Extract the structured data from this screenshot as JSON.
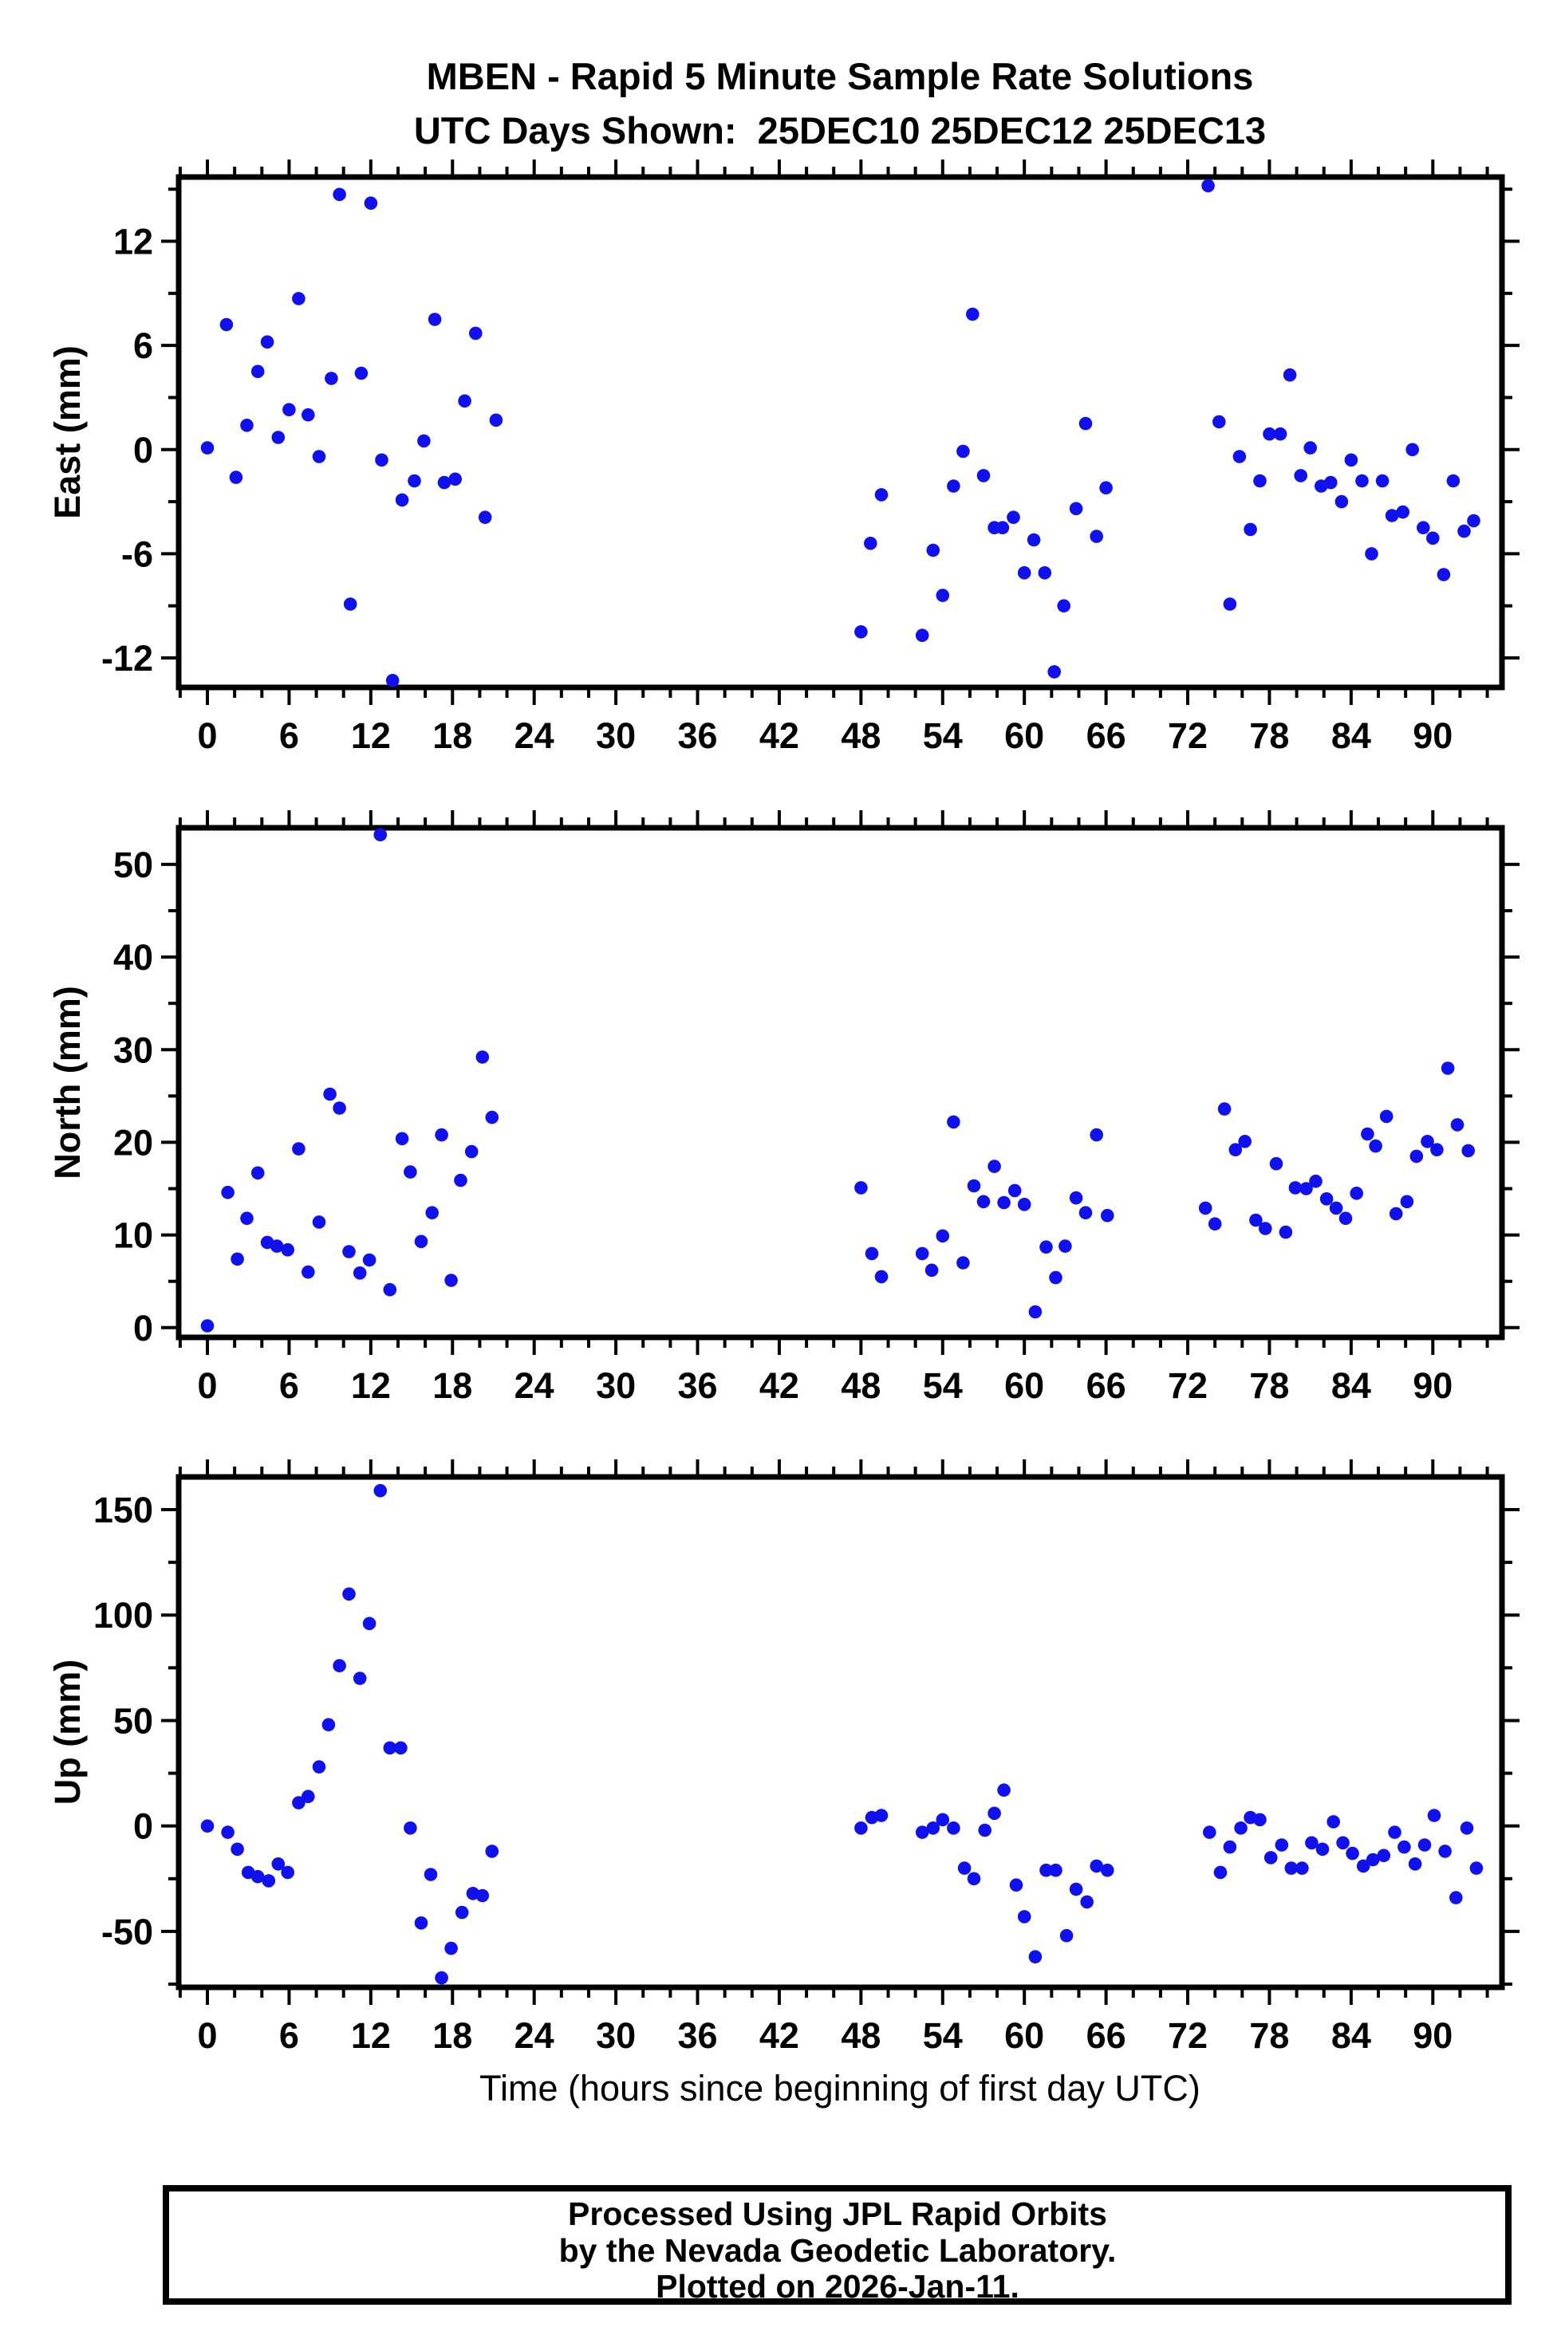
{
  "title": {
    "line1": "MBEN - Rapid 5 Minute Sample Rate Solutions",
    "line2": "UTC Days Shown:  25DEC10 25DEC12 25DEC13"
  },
  "footer": {
    "line1": "Processed Using JPL Rapid Orbits",
    "line2": "by the Nevada Geodetic Laboratory.",
    "line3": "Plotted on 2026-Jan-11."
  },
  "colors": {
    "marker": "#1111ee",
    "axis": "#000000",
    "background": "#ffffff"
  },
  "chart_data": {
    "type": "scatter",
    "title": "MBEN - Rapid 5 Minute Sample Rate Solutions",
    "subtitle": "UTC Days Shown:  25DEC10 25DEC12 25DEC13",
    "xlabel": "Time (hours since beginning of first day UTC)",
    "x_axis": {
      "range": [
        -2.11,
        95.08
      ],
      "major_ticks": [
        0,
        6,
        12,
        18,
        24,
        30,
        36,
        42,
        48,
        54,
        60,
        66,
        72,
        78,
        84,
        90
      ],
      "minor_step": 2,
      "grid": false
    },
    "legend": null,
    "panels": [
      {
        "name": "east",
        "ylabel": "East (mm)",
        "ylim": [
          -13.7,
          15.7
        ],
        "yticks": [
          12,
          6,
          0,
          -6,
          -12
        ],
        "yminors": [
          15,
          9,
          3,
          -3,
          -9
        ],
        "points": [
          [
            0.0,
            0.1
          ],
          [
            1.4,
            7.2
          ],
          [
            2.1,
            -1.6
          ],
          [
            2.9,
            1.4
          ],
          [
            3.7,
            4.5
          ],
          [
            4.4,
            6.2
          ],
          [
            5.2,
            0.7
          ],
          [
            6.0,
            2.3
          ],
          [
            6.7,
            8.7
          ],
          [
            7.4,
            2.0
          ],
          [
            8.2,
            -0.4
          ],
          [
            9.1,
            4.1
          ],
          [
            9.7,
            14.7
          ],
          [
            10.5,
            -8.9
          ],
          [
            11.3,
            4.4
          ],
          [
            12.0,
            14.2
          ],
          [
            12.8,
            -0.6
          ],
          [
            13.6,
            -13.3
          ],
          [
            14.3,
            -2.9
          ],
          [
            15.2,
            -1.8
          ],
          [
            15.9,
            0.5
          ],
          [
            16.7,
            7.5
          ],
          [
            17.4,
            -1.9
          ],
          [
            18.2,
            -1.7
          ],
          [
            18.9,
            2.8
          ],
          [
            19.7,
            6.7
          ],
          [
            20.4,
            -3.9
          ],
          [
            21.2,
            1.7
          ],
          [
            48.0,
            -10.5
          ],
          [
            48.7,
            -5.4
          ],
          [
            49.5,
            -2.6
          ],
          [
            52.5,
            -10.7
          ],
          [
            53.3,
            -5.8
          ],
          [
            54.0,
            -8.4
          ],
          [
            54.8,
            -2.1
          ],
          [
            55.5,
            -0.1
          ],
          [
            56.2,
            7.8
          ],
          [
            57.0,
            -1.5
          ],
          [
            57.8,
            -4.5
          ],
          [
            58.4,
            -4.5
          ],
          [
            59.2,
            -3.9
          ],
          [
            60.0,
            -7.1
          ],
          [
            60.7,
            -5.2
          ],
          [
            61.5,
            -7.1
          ],
          [
            62.2,
            -12.8
          ],
          [
            62.9,
            -9.0
          ],
          [
            63.8,
            -3.4
          ],
          [
            64.5,
            1.5
          ],
          [
            65.3,
            -5.0
          ],
          [
            66.0,
            -2.2
          ],
          [
            73.5,
            15.2
          ],
          [
            74.3,
            1.6
          ],
          [
            75.1,
            -8.9
          ],
          [
            75.8,
            -0.4
          ],
          [
            76.6,
            -4.6
          ],
          [
            77.3,
            -1.8
          ],
          [
            78.0,
            0.9
          ],
          [
            78.8,
            0.9
          ],
          [
            79.5,
            4.3
          ],
          [
            80.3,
            -1.5
          ],
          [
            81.0,
            0.1
          ],
          [
            81.8,
            -2.1
          ],
          [
            82.5,
            -1.9
          ],
          [
            83.3,
            -3.0
          ],
          [
            84.0,
            -0.6
          ],
          [
            84.8,
            -1.8
          ],
          [
            85.5,
            -6.0
          ],
          [
            86.3,
            -1.8
          ],
          [
            87.0,
            -3.8
          ],
          [
            87.8,
            -3.6
          ],
          [
            88.5,
            0.0
          ],
          [
            89.3,
            -4.5
          ],
          [
            90.0,
            -5.1
          ],
          [
            90.8,
            -7.2
          ],
          [
            91.5,
            -1.8
          ],
          [
            92.3,
            -4.7
          ],
          [
            93.0,
            -4.1
          ]
        ]
      },
      {
        "name": "north",
        "ylabel": "North (mm)",
        "ylim": [
          -1.05,
          53.95
        ],
        "yticks": [
          50,
          40,
          30,
          20,
          10,
          0
        ],
        "yminors": [
          45,
          35,
          25,
          15,
          5
        ],
        "points": [
          [
            0.0,
            0.2
          ],
          [
            1.5,
            14.6
          ],
          [
            2.2,
            7.4
          ],
          [
            2.9,
            11.8
          ],
          [
            3.7,
            16.7
          ],
          [
            4.4,
            9.2
          ],
          [
            5.1,
            8.8
          ],
          [
            5.9,
            8.4
          ],
          [
            6.7,
            19.3
          ],
          [
            7.4,
            6.0
          ],
          [
            8.2,
            11.4
          ],
          [
            9.0,
            25.2
          ],
          [
            9.7,
            23.7
          ],
          [
            10.4,
            8.2
          ],
          [
            11.2,
            5.9
          ],
          [
            11.9,
            7.3
          ],
          [
            12.7,
            53.2
          ],
          [
            13.4,
            4.1
          ],
          [
            14.3,
            20.4
          ],
          [
            14.9,
            16.8
          ],
          [
            15.7,
            9.3
          ],
          [
            16.5,
            12.4
          ],
          [
            17.2,
            20.8
          ],
          [
            17.9,
            5.1
          ],
          [
            18.6,
            15.9
          ],
          [
            19.4,
            19.0
          ],
          [
            20.2,
            29.2
          ],
          [
            20.9,
            22.7
          ],
          [
            48.0,
            15.1
          ],
          [
            48.8,
            8.0
          ],
          [
            49.5,
            5.5
          ],
          [
            52.5,
            8.0
          ],
          [
            53.2,
            6.2
          ],
          [
            54.0,
            9.9
          ],
          [
            54.8,
            22.2
          ],
          [
            55.5,
            7.0
          ],
          [
            56.3,
            15.3
          ],
          [
            57.0,
            13.6
          ],
          [
            57.8,
            17.4
          ],
          [
            58.5,
            13.5
          ],
          [
            59.3,
            14.8
          ],
          [
            60.0,
            13.3
          ],
          [
            60.8,
            1.7
          ],
          [
            61.6,
            8.7
          ],
          [
            62.3,
            5.4
          ],
          [
            63.0,
            8.8
          ],
          [
            63.8,
            14.0
          ],
          [
            64.5,
            12.4
          ],
          [
            65.3,
            20.8
          ],
          [
            66.1,
            12.1
          ],
          [
            73.3,
            12.9
          ],
          [
            74.0,
            11.2
          ],
          [
            74.7,
            23.6
          ],
          [
            75.5,
            19.2
          ],
          [
            76.2,
            20.1
          ],
          [
            77.0,
            11.6
          ],
          [
            77.7,
            10.7
          ],
          [
            78.5,
            17.7
          ],
          [
            79.2,
            10.3
          ],
          [
            79.9,
            15.1
          ],
          [
            80.7,
            15.0
          ],
          [
            81.4,
            15.8
          ],
          [
            82.2,
            13.9
          ],
          [
            82.9,
            12.9
          ],
          [
            83.6,
            11.8
          ],
          [
            84.4,
            14.5
          ],
          [
            85.2,
            20.9
          ],
          [
            85.8,
            19.6
          ],
          [
            86.6,
            22.8
          ],
          [
            87.3,
            12.3
          ],
          [
            88.1,
            13.6
          ],
          [
            88.8,
            18.5
          ],
          [
            89.6,
            20.1
          ],
          [
            90.3,
            19.2
          ],
          [
            91.1,
            28.0
          ],
          [
            91.8,
            21.9
          ],
          [
            92.6,
            19.1
          ]
        ]
      },
      {
        "name": "up",
        "ylabel": "Up (mm)",
        "ylim": [
          -76.5,
          165.5
        ],
        "yticks": [
          150,
          100,
          50,
          0,
          -50
        ],
        "yminors": [
          125,
          75,
          25,
          -25,
          -75
        ],
        "points": [
          [
            0.0,
            0
          ],
          [
            1.5,
            -3
          ],
          [
            2.2,
            -11
          ],
          [
            3.0,
            -22
          ],
          [
            3.7,
            -24
          ],
          [
            4.5,
            -26
          ],
          [
            5.2,
            -18
          ],
          [
            5.9,
            -22
          ],
          [
            6.7,
            11
          ],
          [
            7.4,
            14
          ],
          [
            8.2,
            28
          ],
          [
            8.9,
            48
          ],
          [
            9.7,
            76
          ],
          [
            10.4,
            110
          ],
          [
            11.2,
            70
          ],
          [
            11.9,
            96
          ],
          [
            12.7,
            159
          ],
          [
            13.4,
            37
          ],
          [
            14.2,
            37
          ],
          [
            14.9,
            -1
          ],
          [
            15.7,
            -46
          ],
          [
            16.4,
            -23
          ],
          [
            17.2,
            -72
          ],
          [
            17.9,
            -58
          ],
          [
            18.7,
            -41
          ],
          [
            19.5,
            -32
          ],
          [
            20.2,
            -33
          ],
          [
            20.9,
            -12
          ],
          [
            48.0,
            -1
          ],
          [
            48.8,
            4
          ],
          [
            49.5,
            5
          ],
          [
            52.5,
            -3
          ],
          [
            53.3,
            -1
          ],
          [
            54.0,
            3
          ],
          [
            54.8,
            -1
          ],
          [
            55.6,
            -20
          ],
          [
            56.3,
            -25
          ],
          [
            57.1,
            -2
          ],
          [
            57.8,
            6
          ],
          [
            58.5,
            17
          ],
          [
            59.4,
            -28
          ],
          [
            60.0,
            -43
          ],
          [
            60.8,
            -62
          ],
          [
            61.6,
            -21
          ],
          [
            62.3,
            -21
          ],
          [
            63.1,
            -52
          ],
          [
            63.8,
            -30
          ],
          [
            64.6,
            -36
          ],
          [
            65.3,
            -19
          ],
          [
            66.1,
            -21
          ],
          [
            73.6,
            -3
          ],
          [
            74.4,
            -22
          ],
          [
            75.1,
            -10
          ],
          [
            75.9,
            -1
          ],
          [
            76.6,
            4
          ],
          [
            77.3,
            3
          ],
          [
            78.1,
            -15
          ],
          [
            78.9,
            -9
          ],
          [
            79.6,
            -20
          ],
          [
            80.4,
            -20
          ],
          [
            81.1,
            -8
          ],
          [
            81.9,
            -11
          ],
          [
            82.7,
            2
          ],
          [
            83.4,
            -8
          ],
          [
            84.1,
            -13
          ],
          [
            84.9,
            -19
          ],
          [
            85.6,
            -16
          ],
          [
            86.4,
            -14
          ],
          [
            87.2,
            -3
          ],
          [
            87.9,
            -10
          ],
          [
            88.7,
            -18
          ],
          [
            89.4,
            -9
          ],
          [
            90.1,
            5
          ],
          [
            90.9,
            -12
          ],
          [
            91.7,
            -34
          ],
          [
            92.5,
            -1
          ],
          [
            93.2,
            -20
          ]
        ]
      }
    ]
  }
}
